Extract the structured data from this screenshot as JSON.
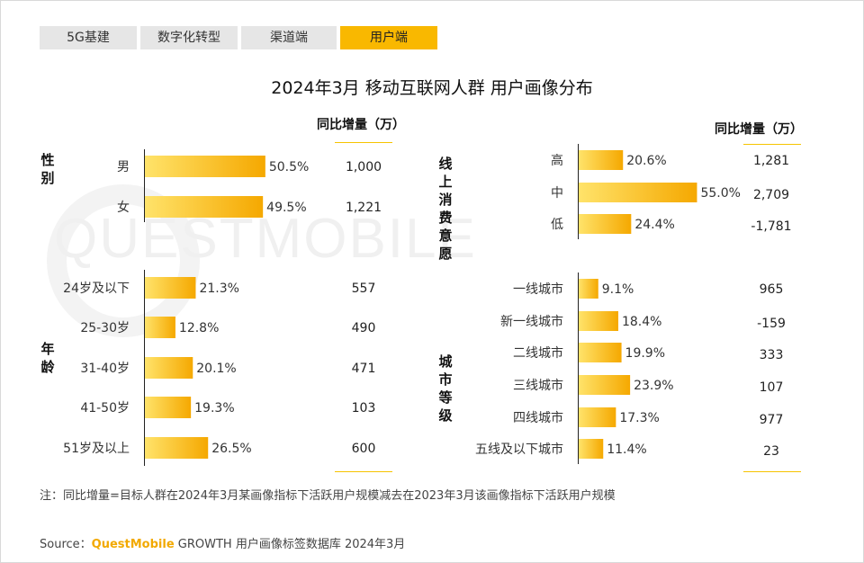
{
  "tabs": [
    {
      "label": "5G基建",
      "active": false
    },
    {
      "label": "数字化转型",
      "active": false
    },
    {
      "label": "渠道端",
      "active": false
    },
    {
      "label": "用户端",
      "active": true
    }
  ],
  "title": "2024年3月 移动互联网人群 用户画像分布",
  "left_col_header": "同比增量（万）",
  "right_col_header": "同比增量（万）",
  "watermark": "QUESTMOBILE",
  "note": "注：同比增量=目标人群在2024年3月某画像指标下活跃用户规模减去在2023年3月该画像指标下活跃用户规模",
  "source": {
    "prefix": "Source：",
    "brand": "QuestMobile",
    "text": "GROWTH 用户画像标签数据库 2024年3月"
  },
  "colors": {
    "bar_start": "#ffe36a",
    "bar_end": "#f5a800",
    "accent": "#f9b800"
  },
  "chart_data": [
    {
      "type": "bar",
      "group": "性别",
      "categories": [
        "男",
        "女"
      ],
      "values": [
        50.5,
        49.5
      ],
      "unit": "%",
      "yoy_increase": [
        "1,000",
        "1,221"
      ]
    },
    {
      "type": "bar",
      "group": "年龄",
      "categories": [
        "24岁及以下",
        "25-30岁",
        "31-40岁",
        "41-50岁",
        "51岁及以上"
      ],
      "values": [
        21.3,
        12.8,
        20.1,
        19.3,
        26.5
      ],
      "unit": "%",
      "yoy_increase": [
        "557",
        "490",
        "471",
        "103",
        "600"
      ]
    },
    {
      "type": "bar",
      "group": "线上消费意愿",
      "categories": [
        "高",
        "中",
        "低"
      ],
      "values": [
        20.6,
        55.0,
        24.4
      ],
      "unit": "%",
      "yoy_increase": [
        "1,281",
        "2,709",
        "-1,781"
      ]
    },
    {
      "type": "bar",
      "group": "城市等级",
      "categories": [
        "一线城市",
        "新一线城市",
        "二线城市",
        "三线城市",
        "四线城市",
        "五线及以下城市"
      ],
      "values": [
        9.1,
        18.4,
        19.9,
        23.9,
        17.3,
        11.4
      ],
      "unit": "%",
      "yoy_increase": [
        "965",
        "-159",
        "333",
        "107",
        "977",
        "23"
      ]
    }
  ]
}
